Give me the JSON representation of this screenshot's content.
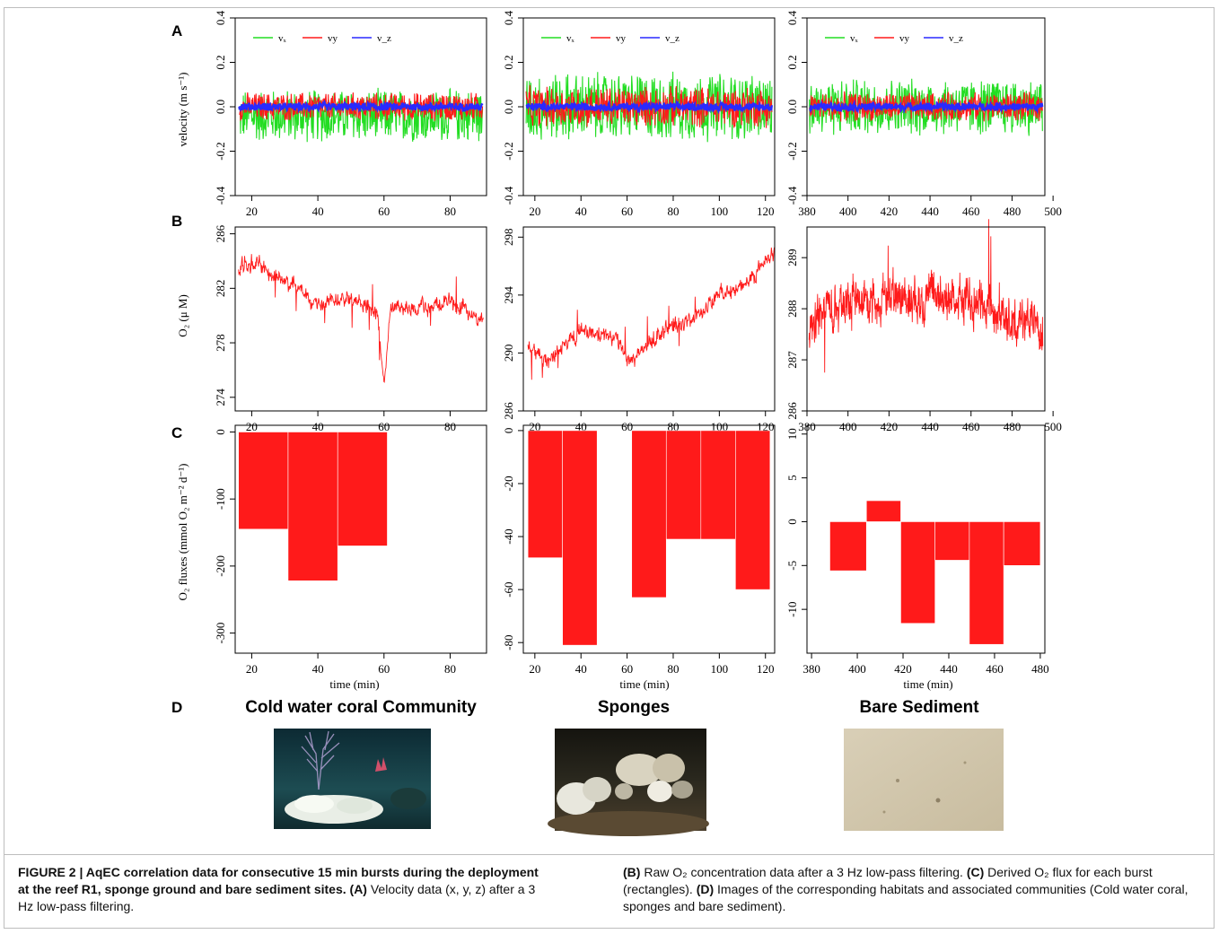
{
  "panel_letters": {
    "a": "A",
    "b": "B",
    "c": "C",
    "d": "D"
  },
  "legend": {
    "vx": "vₓ",
    "vy": "vy",
    "vz": "v_z"
  },
  "labels": {
    "velocity_ylabel": "velocity (m s⁻¹)",
    "o2_ylabel": "O₂ (μ M)",
    "flux_ylabel": "O₂ fluxes (mmol O₂ m⁻² d⁻¹)",
    "time_xlabel": "time (min)"
  },
  "habitats": {
    "coral": "Cold water coral Community",
    "sponges": "Sponges",
    "sediment": "Bare Sediment"
  },
  "caption": {
    "heading": "FIGURE 2 | AqEC correlation data for consecutive 15 min bursts during the deployment at the reef R1, sponge ground and bare sediment sites.",
    "a_tag": "(A)",
    "a_text": " Velocity data (x, y, z) after a 3 Hz low-pass filtering.",
    "b_tag": "(B)",
    "b_text": " Raw O₂ concentration data after a 3 Hz low-pass filtering.",
    "c_tag": "(C)",
    "c_text": " Derived O₂ flux for each burst (rectangles).",
    "d_tag": "(D)",
    "d_text": " Images of the corresponding habitats and associated communities (Cold water coral, sponges and bare sediment)."
  },
  "colors": {
    "vx": "#22dd22",
    "vy": "#ff1a1a",
    "vz": "#2a2aff",
    "o2": "#ff1a1a",
    "flux": "#ff1a1a"
  },
  "chart_data": [
    {
      "id": "A1",
      "type": "line",
      "xlim": [
        15,
        91
      ],
      "ylim": [
        -0.4,
        0.4
      ],
      "xticks": [
        20,
        40,
        60,
        80
      ],
      "yticks": [
        -0.4,
        -0.2,
        0.0,
        0.2,
        0.4
      ],
      "series": [
        {
          "name": "vₓ",
          "mean": -0.04,
          "amplitude": 0.13
        },
        {
          "name": "vy",
          "mean": 0.0,
          "amplitude": 0.07
        },
        {
          "name": "v_z",
          "mean": 0.0,
          "amplitude": 0.02
        }
      ]
    },
    {
      "id": "A2",
      "type": "line",
      "xlim": [
        15,
        124
      ],
      "ylim": [
        -0.4,
        0.4
      ],
      "xticks": [
        20,
        40,
        60,
        80,
        100,
        120
      ],
      "yticks": [
        -0.4,
        -0.2,
        0.0,
        0.2,
        0.4
      ],
      "series": [
        {
          "name": "vₓ",
          "mean": 0.0,
          "amplitude": 0.17
        },
        {
          "name": "vy",
          "mean": 0.0,
          "amplitude": 0.1
        },
        {
          "name": "v_z",
          "mean": 0.0,
          "amplitude": 0.02
        }
      ]
    },
    {
      "id": "A3",
      "type": "line",
      "xlim": [
        380,
        496
      ],
      "ylim": [
        -0.4,
        0.4
      ],
      "xticks": [
        380,
        400,
        420,
        440,
        460,
        480,
        500
      ],
      "yticks": [
        -0.4,
        -0.2,
        0.0,
        0.2,
        0.4
      ],
      "series": [
        {
          "name": "vₓ",
          "mean": 0.0,
          "amplitude": 0.14
        },
        {
          "name": "vy",
          "mean": 0.0,
          "amplitude": 0.07
        },
        {
          "name": "v_z",
          "mean": 0.0,
          "amplitude": 0.02
        }
      ]
    },
    {
      "id": "B1",
      "type": "line",
      "xlim": [
        15,
        91
      ],
      "ylim": [
        273,
        286.5
      ],
      "xticks": [
        20,
        40,
        60,
        80
      ],
      "yticks": [
        274,
        278,
        282,
        286
      ],
      "trend": [
        [
          16,
          283.5
        ],
        [
          20,
          284
        ],
        [
          30,
          282.5
        ],
        [
          40,
          281
        ],
        [
          50,
          281.5
        ],
        [
          58,
          280
        ],
        [
          60,
          275
        ],
        [
          62,
          280.5
        ],
        [
          70,
          280.5
        ],
        [
          80,
          281
        ],
        [
          90,
          279.5
        ]
      ]
    },
    {
      "id": "B2",
      "type": "line",
      "xlim": [
        15,
        124
      ],
      "ylim": [
        286,
        298.7
      ],
      "xticks": [
        20,
        40,
        60,
        80,
        100,
        120
      ],
      "yticks": [
        286,
        290,
        294,
        298
      ],
      "trend": [
        [
          17,
          290.5
        ],
        [
          25,
          289.5
        ],
        [
          40,
          291.5
        ],
        [
          55,
          291
        ],
        [
          62,
          289.5
        ],
        [
          75,
          291.5
        ],
        [
          90,
          292.5
        ],
        [
          100,
          294
        ],
        [
          110,
          294.5
        ],
        [
          118,
          296
        ],
        [
          124,
          297
        ]
      ]
    },
    {
      "id": "B3",
      "type": "line",
      "xlim": [
        380,
        496
      ],
      "ylim": [
        286,
        289.6
      ],
      "xticks": [
        380,
        400,
        420,
        440,
        460,
        480,
        500
      ],
      "yticks": [
        286,
        287,
        288,
        289
      ],
      "trend": [
        [
          381,
          287.5
        ],
        [
          385,
          287.9
        ],
        [
          400,
          288.2
        ],
        [
          420,
          288.25
        ],
        [
          440,
          288.2
        ],
        [
          460,
          288.2
        ],
        [
          470,
          288.0
        ],
        [
          478,
          287.8
        ],
        [
          495,
          287.7
        ]
      ]
    },
    {
      "id": "C1",
      "type": "bar",
      "xlim": [
        15,
        91
      ],
      "ylim": [
        -330,
        10
      ],
      "xticks": [
        20,
        40,
        60,
        80
      ],
      "yticks": [
        -300,
        -200,
        -100,
        0
      ],
      "bars": [
        {
          "x0": 16,
          "x1": 31,
          "value": -145
        },
        {
          "x0": 31,
          "x1": 46,
          "value": -222
        },
        {
          "x0": 46,
          "x1": 61,
          "value": -170
        }
      ]
    },
    {
      "id": "C2",
      "type": "bar",
      "xlim": [
        15,
        124
      ],
      "ylim": [
        -84,
        2
      ],
      "xticks": [
        20,
        40,
        60,
        80,
        100,
        120
      ],
      "yticks": [
        -80,
        -60,
        -40,
        -20,
        0
      ],
      "bars": [
        {
          "x0": 17,
          "x1": 32,
          "value": -48
        },
        {
          "x0": 32,
          "x1": 47,
          "value": -81
        },
        {
          "x0": 62,
          "x1": 77,
          "value": -63
        },
        {
          "x0": 77,
          "x1": 92,
          "value": -41
        },
        {
          "x0": 92,
          "x1": 107,
          "value": -41
        },
        {
          "x0": 107,
          "x1": 122,
          "value": -60
        }
      ]
    },
    {
      "id": "C3",
      "type": "bar",
      "xlim": [
        378,
        482
      ],
      "ylim": [
        -15,
        11
      ],
      "xticks": [
        380,
        400,
        420,
        440,
        460,
        480
      ],
      "yticks": [
        -10,
        -5,
        0,
        5,
        10
      ],
      "bars": [
        {
          "x0": 388,
          "x1": 404,
          "value": -5.6
        },
        {
          "x0": 404,
          "x1": 419,
          "value": 2.4
        },
        {
          "x0": 419,
          "x1": 434,
          "value": -11.6
        },
        {
          "x0": 434,
          "x1": 449,
          "value": -4.4
        },
        {
          "x0": 449,
          "x1": 464,
          "value": -14
        },
        {
          "x0": 464,
          "x1": 480,
          "value": -5
        }
      ]
    }
  ]
}
